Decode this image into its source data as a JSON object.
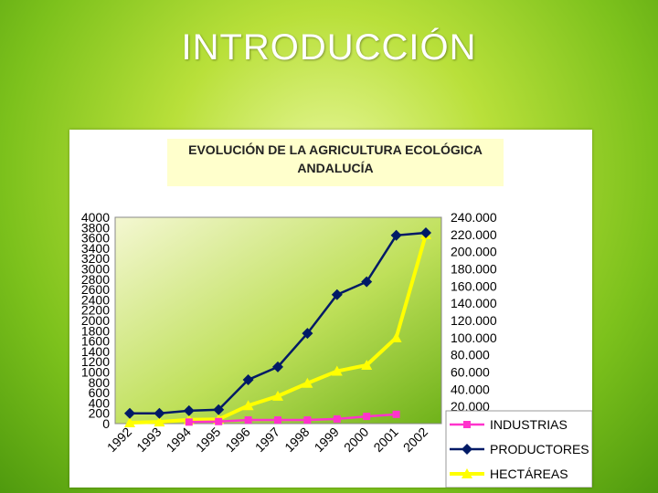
{
  "slide": {
    "title": "INTRODUCCIÓN"
  },
  "chart_data": {
    "type": "line",
    "title_line1": "EVOLUCIÓN DE LA AGRICULTURA ECOLÓGICA",
    "title_line2": "ANDALUCÍA",
    "categories": [
      "1992",
      "1993",
      "1994",
      "1995",
      "1996",
      "1997",
      "1998",
      "1999",
      "2000",
      "2001",
      "2002"
    ],
    "y_left": {
      "ticks": [
        0,
        200,
        400,
        600,
        800,
        1000,
        1200,
        1400,
        1600,
        1800,
        2000,
        2200,
        2400,
        2600,
        2800,
        3000,
        3200,
        3400,
        3600,
        3800,
        4000
      ],
      "ylim": [
        0,
        4000
      ]
    },
    "y_right": {
      "tick_labels": [
        "20.000",
        "40.000",
        "60.000",
        "80.000",
        "100.000",
        "120.000",
        "140.000",
        "160.000",
        "180.000",
        "200.000",
        "220.000",
        "240.000"
      ],
      "ylim": [
        0,
        240000
      ]
    },
    "series": [
      {
        "name": "INDUSTRIAS",
        "color": "#ff33cc",
        "marker": "square",
        "axis": "left",
        "values": [
          null,
          null,
          30,
          40,
          70,
          70,
          70,
          90,
          140,
          180,
          null
        ]
      },
      {
        "name": "PRODUCTORES",
        "color": "#001a66",
        "marker": "diamond",
        "axis": "left",
        "values": [
          200,
          200,
          250,
          270,
          850,
          1100,
          1750,
          2500,
          2750,
          3650,
          3700
        ]
      },
      {
        "name": "HECTÁREAS",
        "color": "#ffff00",
        "marker": "triangle",
        "axis": "right",
        "values": [
          1000,
          2000,
          4500,
          5000,
          21000,
          32000,
          47000,
          61000,
          68000,
          100000,
          220000
        ]
      }
    ],
    "grid": false,
    "legend_position": "bottom-right"
  }
}
